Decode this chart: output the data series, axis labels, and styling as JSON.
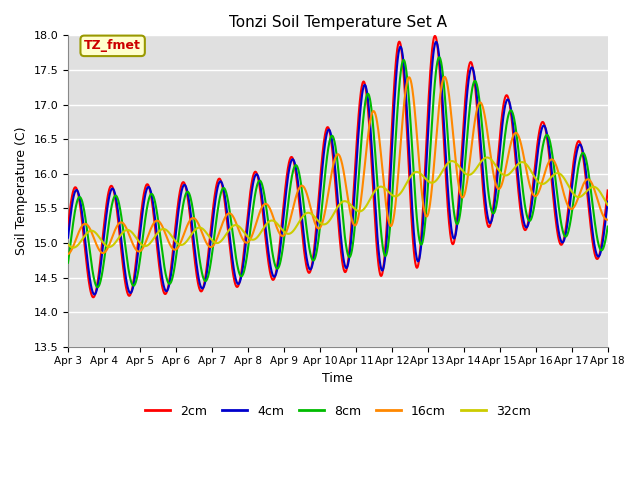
{
  "title": "Tonzi Soil Temperature Set A",
  "xlabel": "Time",
  "ylabel": "Soil Temperature (C)",
  "ylim": [
    13.5,
    18.0
  ],
  "plot_bg_color": "#e0e0e0",
  "grid_color": "white",
  "annotation_text": "TZ_fmet",
  "annotation_bg": "#ffffcc",
  "annotation_border": "#999900",
  "annotation_text_color": "#cc0000",
  "series": {
    "2cm": {
      "color": "#ff0000",
      "lw": 1.5
    },
    "4cm": {
      "color": "#0000cc",
      "lw": 1.5
    },
    "8cm": {
      "color": "#00bb00",
      "lw": 1.5
    },
    "16cm": {
      "color": "#ff8800",
      "lw": 1.5
    },
    "32cm": {
      "color": "#cccc00",
      "lw": 1.5
    }
  },
  "legend_labels": [
    "2cm",
    "4cm",
    "8cm",
    "16cm",
    "32cm"
  ],
  "legend_colors": [
    "#ff0000",
    "#0000cc",
    "#00bb00",
    "#ff8800",
    "#cccc00"
  ],
  "tick_labels": [
    "Apr 3",
    "Apr 4",
    "Apr 5",
    "Apr 6",
    "Apr 7",
    "Apr 8",
    "Apr 9",
    "Apr 10",
    "Apr 11",
    "Apr 12",
    "Apr 13",
    "Apr 14",
    "Apr 15",
    "Apr 16",
    "Apr 17",
    "Apr 18"
  ],
  "yticks": [
    13.5,
    14.0,
    14.5,
    15.0,
    15.5,
    16.0,
    16.5,
    17.0,
    17.5,
    18.0
  ]
}
